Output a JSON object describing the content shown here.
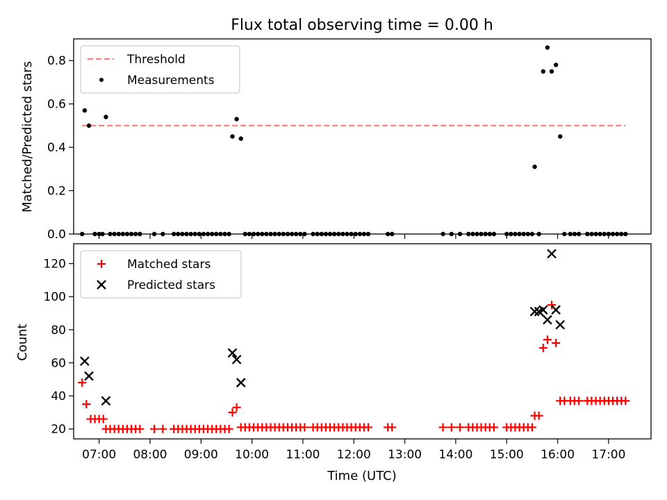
{
  "chart_data": [
    {
      "type": "scatter",
      "title": "Flux total observing time = 0.00 h",
      "xlabel": "",
      "ylabel": "Matched/Predicted stars",
      "xlim": [
        "06:30",
        "17:50"
      ],
      "ylim": [
        0,
        0.9
      ],
      "yticks": [
        0.0,
        0.2,
        0.4,
        0.6,
        0.8
      ],
      "ytick_labels": [
        "0.0",
        "0.2",
        "0.4",
        "0.6",
        "0.8"
      ],
      "xticks": [
        "07:00",
        "08:00",
        "09:00",
        "10:00",
        "11:00",
        "12:00",
        "13:00",
        "14:00",
        "15:00",
        "16:00",
        "17:00"
      ],
      "grid": false,
      "legend": {
        "position": "top-left",
        "entries": [
          "Threshold",
          "Measurements"
        ]
      },
      "threshold": {
        "name": "Threshold",
        "value": 0.5,
        "x": [
          "06:40",
          "17:20"
        ],
        "color": "#ff7f7f",
        "style": "dashed"
      },
      "series": [
        {
          "name": "Measurements",
          "color": "#000000",
          "marker": "dot",
          "points": [
            [
              "06:40",
              0.0
            ],
            [
              "06:43",
              0.57
            ],
            [
              "06:48",
              0.5
            ],
            [
              "06:55",
              0.0
            ],
            [
              "07:00",
              0.0
            ],
            [
              "07:04",
              0.0
            ],
            [
              "07:08",
              0.54
            ],
            [
              "07:13",
              0.0
            ],
            [
              "07:18",
              0.0
            ],
            [
              "07:23",
              0.0
            ],
            [
              "07:28",
              0.0
            ],
            [
              "07:33",
              0.0
            ],
            [
              "07:38",
              0.0
            ],
            [
              "07:43",
              0.0
            ],
            [
              "07:48",
              0.0
            ],
            [
              "08:05",
              0.0
            ],
            [
              "08:15",
              0.0
            ],
            [
              "08:28",
              0.0
            ],
            [
              "08:33",
              0.0
            ],
            [
              "08:38",
              0.0
            ],
            [
              "08:43",
              0.0
            ],
            [
              "08:48",
              0.0
            ],
            [
              "08:53",
              0.0
            ],
            [
              "08:58",
              0.0
            ],
            [
              "09:03",
              0.0
            ],
            [
              "09:08",
              0.0
            ],
            [
              "09:13",
              0.0
            ],
            [
              "09:18",
              0.0
            ],
            [
              "09:23",
              0.0
            ],
            [
              "09:28",
              0.0
            ],
            [
              "09:33",
              0.0
            ],
            [
              "09:37",
              0.45
            ],
            [
              "09:42",
              0.53
            ],
            [
              "09:47",
              0.44
            ],
            [
              "09:52",
              0.0
            ],
            [
              "09:57",
              0.0
            ],
            [
              "10:02",
              0.0
            ],
            [
              "10:07",
              0.0
            ],
            [
              "10:12",
              0.0
            ],
            [
              "10:17",
              0.0
            ],
            [
              "10:22",
              0.0
            ],
            [
              "10:27",
              0.0
            ],
            [
              "10:32",
              0.0
            ],
            [
              "10:37",
              0.0
            ],
            [
              "10:42",
              0.0
            ],
            [
              "10:47",
              0.0
            ],
            [
              "10:52",
              0.0
            ],
            [
              "10:57",
              0.0
            ],
            [
              "11:02",
              0.0
            ],
            [
              "11:12",
              0.0
            ],
            [
              "11:17",
              0.0
            ],
            [
              "11:22",
              0.0
            ],
            [
              "11:27",
              0.0
            ],
            [
              "11:32",
              0.0
            ],
            [
              "11:37",
              0.0
            ],
            [
              "11:42",
              0.0
            ],
            [
              "11:47",
              0.0
            ],
            [
              "11:52",
              0.0
            ],
            [
              "11:57",
              0.0
            ],
            [
              "12:02",
              0.0
            ],
            [
              "12:07",
              0.0
            ],
            [
              "12:12",
              0.0
            ],
            [
              "12:17",
              0.0
            ],
            [
              "12:40",
              0.0
            ],
            [
              "12:45",
              0.0
            ],
            [
              "13:45",
              0.0
            ],
            [
              "13:55",
              0.0
            ],
            [
              "14:05",
              0.0
            ],
            [
              "14:15",
              0.0
            ],
            [
              "14:20",
              0.0
            ],
            [
              "14:25",
              0.0
            ],
            [
              "14:30",
              0.0
            ],
            [
              "14:35",
              0.0
            ],
            [
              "14:40",
              0.0
            ],
            [
              "14:45",
              0.0
            ],
            [
              "15:00",
              0.0
            ],
            [
              "15:05",
              0.0
            ],
            [
              "15:10",
              0.0
            ],
            [
              "15:15",
              0.0
            ],
            [
              "15:20",
              0.0
            ],
            [
              "15:25",
              0.0
            ],
            [
              "15:30",
              0.0
            ],
            [
              "15:33",
              0.31
            ],
            [
              "15:38",
              0.0
            ],
            [
              "15:43",
              0.75
            ],
            [
              "15:48",
              0.86
            ],
            [
              "15:53",
              0.75
            ],
            [
              "15:58",
              0.78
            ],
            [
              "16:03",
              0.45
            ],
            [
              "16:08",
              0.0
            ],
            [
              "16:15",
              0.0
            ],
            [
              "16:20",
              0.0
            ],
            [
              "16:25",
              0.0
            ],
            [
              "16:35",
              0.0
            ],
            [
              "16:40",
              0.0
            ],
            [
              "16:45",
              0.0
            ],
            [
              "16:50",
              0.0
            ],
            [
              "16:55",
              0.0
            ],
            [
              "17:00",
              0.0
            ],
            [
              "17:05",
              0.0
            ],
            [
              "17:10",
              0.0
            ],
            [
              "17:15",
              0.0
            ],
            [
              "17:20",
              0.0
            ]
          ]
        }
      ]
    },
    {
      "type": "scatter",
      "title": "",
      "xlabel": "Time (UTC)",
      "ylabel": "Count",
      "xlim": [
        "06:30",
        "17:50"
      ],
      "ylim": [
        14,
        132
      ],
      "yticks": [
        20,
        40,
        60,
        80,
        100,
        120
      ],
      "ytick_labels": [
        "20",
        "40",
        "60",
        "80",
        "100",
        "120"
      ],
      "xticks": [
        "07:00",
        "08:00",
        "09:00",
        "10:00",
        "11:00",
        "12:00",
        "13:00",
        "14:00",
        "15:00",
        "16:00",
        "17:00"
      ],
      "xtick_labels": [
        "07:00",
        "08:00",
        "09:00",
        "10:00",
        "11:00",
        "12:00",
        "13:00",
        "14:00",
        "15:00",
        "16:00",
        "17:00"
      ],
      "grid": false,
      "legend": {
        "position": "top-left",
        "entries": [
          "Matched stars",
          "Predicted stars"
        ]
      },
      "series": [
        {
          "name": "Matched stars",
          "color": "#ff0000",
          "marker": "plus",
          "points": [
            [
              "06:40",
              48
            ],
            [
              "06:45",
              35
            ],
            [
              "06:50",
              26
            ],
            [
              "06:55",
              26
            ],
            [
              "07:00",
              26
            ],
            [
              "07:05",
              26
            ],
            [
              "07:08",
              20
            ],
            [
              "07:13",
              20
            ],
            [
              "07:18",
              20
            ],
            [
              "07:23",
              20
            ],
            [
              "07:28",
              20
            ],
            [
              "07:33",
              20
            ],
            [
              "07:38",
              20
            ],
            [
              "07:43",
              20
            ],
            [
              "07:48",
              20
            ],
            [
              "08:05",
              20
            ],
            [
              "08:15",
              20
            ],
            [
              "08:28",
              20
            ],
            [
              "08:33",
              20
            ],
            [
              "08:38",
              20
            ],
            [
              "08:43",
              20
            ],
            [
              "08:48",
              20
            ],
            [
              "08:53",
              20
            ],
            [
              "08:58",
              20
            ],
            [
              "09:03",
              20
            ],
            [
              "09:08",
              20
            ],
            [
              "09:13",
              20
            ],
            [
              "09:18",
              20
            ],
            [
              "09:23",
              20
            ],
            [
              "09:28",
              20
            ],
            [
              "09:33",
              20
            ],
            [
              "09:37",
              30
            ],
            [
              "09:42",
              33
            ],
            [
              "09:47",
              21
            ],
            [
              "09:52",
              21
            ],
            [
              "09:57",
              21
            ],
            [
              "10:02",
              21
            ],
            [
              "10:07",
              21
            ],
            [
              "10:12",
              21
            ],
            [
              "10:17",
              21
            ],
            [
              "10:22",
              21
            ],
            [
              "10:27",
              21
            ],
            [
              "10:32",
              21
            ],
            [
              "10:37",
              21
            ],
            [
              "10:42",
              21
            ],
            [
              "10:47",
              21
            ],
            [
              "10:52",
              21
            ],
            [
              "10:57",
              21
            ],
            [
              "11:02",
              21
            ],
            [
              "11:12",
              21
            ],
            [
              "11:17",
              21
            ],
            [
              "11:22",
              21
            ],
            [
              "11:27",
              21
            ],
            [
              "11:32",
              21
            ],
            [
              "11:37",
              21
            ],
            [
              "11:42",
              21
            ],
            [
              "11:47",
              21
            ],
            [
              "11:52",
              21
            ],
            [
              "11:57",
              21
            ],
            [
              "12:02",
              21
            ],
            [
              "12:07",
              21
            ],
            [
              "12:12",
              21
            ],
            [
              "12:17",
              21
            ],
            [
              "12:40",
              21
            ],
            [
              "12:45",
              21
            ],
            [
              "13:45",
              21
            ],
            [
              "13:55",
              21
            ],
            [
              "14:05",
              21
            ],
            [
              "14:15",
              21
            ],
            [
              "14:20",
              21
            ],
            [
              "14:25",
              21
            ],
            [
              "14:30",
              21
            ],
            [
              "14:35",
              21
            ],
            [
              "14:40",
              21
            ],
            [
              "14:45",
              21
            ],
            [
              "15:00",
              21
            ],
            [
              "15:05",
              21
            ],
            [
              "15:10",
              21
            ],
            [
              "15:15",
              21
            ],
            [
              "15:20",
              21
            ],
            [
              "15:25",
              21
            ],
            [
              "15:30",
              21
            ],
            [
              "15:33",
              28
            ],
            [
              "15:38",
              28
            ],
            [
              "15:43",
              69
            ],
            [
              "15:48",
              74
            ],
            [
              "15:53",
              95
            ],
            [
              "15:58",
              72
            ],
            [
              "16:03",
              37
            ],
            [
              "16:08",
              37
            ],
            [
              "16:15",
              37
            ],
            [
              "16:20",
              37
            ],
            [
              "16:25",
              37
            ],
            [
              "16:35",
              37
            ],
            [
              "16:40",
              37
            ],
            [
              "16:45",
              37
            ],
            [
              "16:50",
              37
            ],
            [
              "16:55",
              37
            ],
            [
              "17:00",
              37
            ],
            [
              "17:05",
              37
            ],
            [
              "17:10",
              37
            ],
            [
              "17:15",
              37
            ],
            [
              "17:20",
              37
            ]
          ]
        },
        {
          "name": "Predicted stars",
          "color": "#000000",
          "marker": "x",
          "points": [
            [
              "06:43",
              61
            ],
            [
              "06:48",
              52
            ],
            [
              "07:08",
              37
            ],
            [
              "09:37",
              66
            ],
            [
              "09:42",
              62
            ],
            [
              "09:47",
              48
            ],
            [
              "15:33",
              91
            ],
            [
              "15:38",
              91
            ],
            [
              "15:43",
              92
            ],
            [
              "15:48",
              86
            ],
            [
              "15:53",
              126
            ],
            [
              "15:58",
              92
            ],
            [
              "16:03",
              83
            ]
          ]
        }
      ]
    }
  ]
}
